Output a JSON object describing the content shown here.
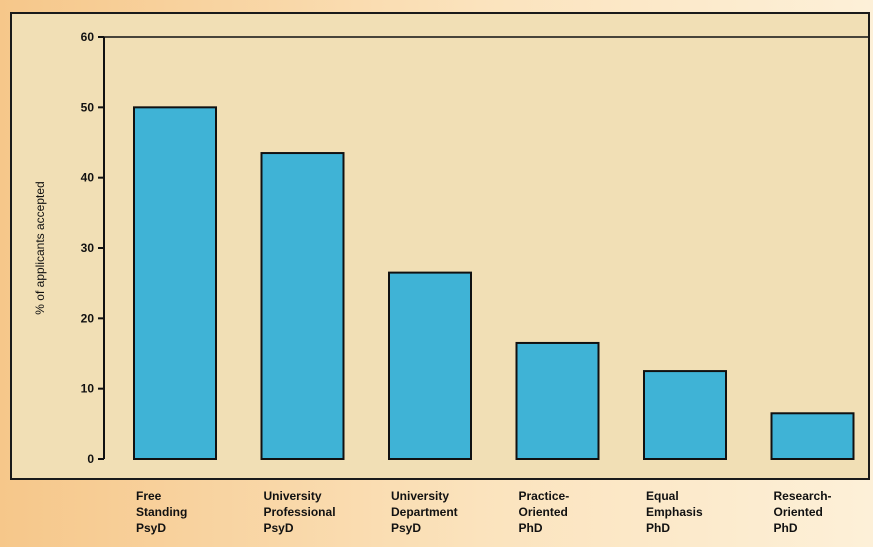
{
  "chart_data": {
    "type": "bar",
    "title": "",
    "xlabel": "",
    "ylabel": "% of applicants accepted",
    "ylim": [
      0,
      60
    ],
    "yticks": [
      0,
      10,
      20,
      30,
      40,
      50,
      60
    ],
    "grid": false,
    "categories": [
      [
        "Free",
        "Standing",
        "PsyD"
      ],
      [
        "University",
        "Professional",
        "PsyD"
      ],
      [
        "University",
        "Department",
        "PsyD"
      ],
      [
        "Practice-",
        "Oriented",
        "PhD"
      ],
      [
        "Equal",
        "Emphasis",
        "PhD"
      ],
      [
        "Research-",
        "Oriented",
        "PhD"
      ]
    ],
    "values": [
      50,
      43.5,
      26.5,
      16.5,
      12.5,
      6.5
    ],
    "colors": {
      "bar_fill": "#3fb3d6",
      "bar_stroke": "#111111",
      "plot_bg": "#f1dfb5",
      "axis": "#111111"
    }
  }
}
